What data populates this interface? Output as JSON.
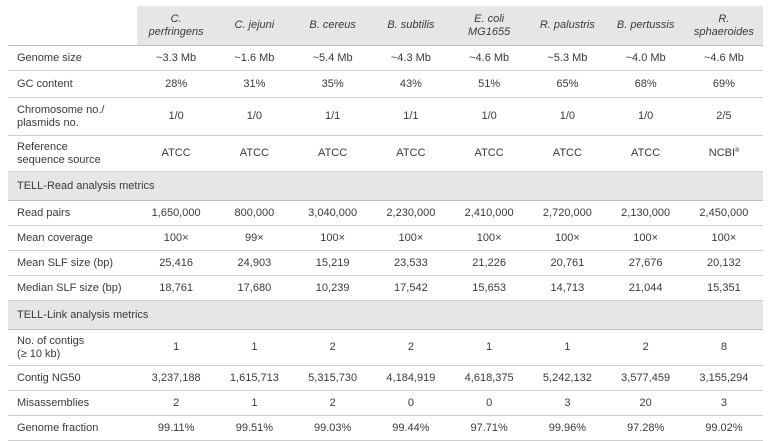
{
  "columns": [
    {
      "line1": "C.",
      "line2": "perfringens"
    },
    {
      "line1": "C. jejuni",
      "line2": ""
    },
    {
      "line1": "B. cereus",
      "line2": ""
    },
    {
      "line1": "B. subtilis",
      "line2": ""
    },
    {
      "line1": "E. coli",
      "line2": "MG1655"
    },
    {
      "line1": "R. palustris",
      "line2": ""
    },
    {
      "line1": "B. pertussis",
      "line2": ""
    },
    {
      "line1": "R.",
      "line2": "sphaeroides"
    }
  ],
  "general_rows": [
    {
      "label_1": "Genome size",
      "label_2": "",
      "values": [
        "~3.3 Mb",
        "~1.6 Mb",
        "~5.4 Mb",
        "~4.3 Mb",
        "~4.6 Mb",
        "~5.3 Mb",
        "~4.0 Mb",
        "~4.6 Mb"
      ]
    },
    {
      "label_1": "GC content",
      "label_2": "",
      "values": [
        "28%",
        "31%",
        "35%",
        "43%",
        "51%",
        "65%",
        "68%",
        "69%"
      ]
    },
    {
      "label_1": "Chromosome no./",
      "label_2": "plasmids no.",
      "values": [
        "1/0",
        "1/0",
        "1/1",
        "1/1",
        "1/0",
        "1/0",
        "1/0",
        "2/5"
      ]
    },
    {
      "label_1": "Reference",
      "label_2": "sequence source",
      "values": [
        "ATCC",
        "ATCC",
        "ATCC",
        "ATCC",
        "ATCC",
        "ATCC",
        "ATCC",
        "NCBI"
      ],
      "last_sup": "a"
    }
  ],
  "read_section_title": "TELL-Read analysis metrics",
  "read_rows": [
    {
      "label_1": "Read pairs",
      "label_2": "",
      "values": [
        "1,650,000",
        "800,000",
        "3,040,000",
        "2,230,000",
        "2,410,000",
        "2,720,000",
        "2,130,000",
        "2,450,000"
      ]
    },
    {
      "label_1": "Mean coverage",
      "label_2": "",
      "values": [
        "100×",
        "99×",
        "100×",
        "100×",
        "100×",
        "100×",
        "100×",
        "100×"
      ]
    },
    {
      "label_1": "Mean SLF size (bp)",
      "label_2": "",
      "values": [
        "25,416",
        "24,903",
        "15,219",
        "23,533",
        "21,226",
        "20,761",
        "27,676",
        "20,132"
      ]
    },
    {
      "label_1": "Median SLF size (bp)",
      "label_2": "",
      "values": [
        "18,761",
        "17,680",
        "10,239",
        "17,542",
        "15,653",
        "14,713",
        "21,044",
        "15,351"
      ]
    }
  ],
  "link_section_title": "TELL-Link analysis metrics",
  "link_rows": [
    {
      "label_1": "No. of contigs",
      "label_2": "(≥ 10 kb)",
      "values": [
        "1",
        "1",
        "2",
        "2",
        "1",
        "1",
        "2",
        "8"
      ]
    },
    {
      "label_1": "Contig NG50",
      "label_2": "",
      "values": [
        "3,237,188",
        "1,615,713",
        "5,315,730",
        "4,184,919",
        "4,618,375",
        "5,242,132",
        "3,577,459",
        "3,155,294"
      ]
    },
    {
      "label_1": "Misassemblies",
      "label_2": "",
      "values": [
        "2",
        "1",
        "2",
        "0",
        "0",
        "3",
        "20",
        "3"
      ]
    },
    {
      "label_1": "Genome fraction",
      "label_2": "",
      "values": [
        "99.11%",
        "99.51%",
        "99.03%",
        "99.44%",
        "97.71%",
        "99.96%",
        "97.28%",
        "99.02%"
      ]
    }
  ]
}
